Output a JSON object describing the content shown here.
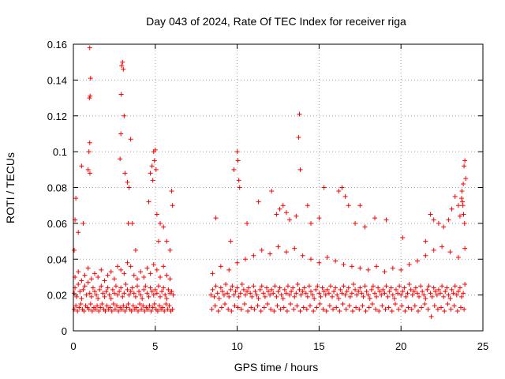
{
  "chart_data": {
    "type": "scatter",
    "title": "Day 043 of 2024, Rate Of TEC Index for receiver riga",
    "xlabel": "GPS time / hours",
    "ylabel": "ROTI / TECUs",
    "xlim": [
      0,
      25
    ],
    "ylim": [
      0,
      0.16
    ],
    "xticks": [
      0,
      5,
      10,
      15,
      20,
      25
    ],
    "xtick_labels": [
      "0",
      "5",
      "10",
      "15",
      "20",
      "25"
    ],
    "yticks": [
      0,
      0.02,
      0.04,
      0.06,
      0.08,
      0.1,
      0.12,
      0.14,
      0.16
    ],
    "ytick_labels": [
      "0",
      "0.02",
      "0.04",
      "0.06",
      "0.08",
      "0.1",
      "0.12",
      "0.14",
      "0.16"
    ],
    "grid": true,
    "marker": "+",
    "series_color": "#ff0000",
    "series": [
      {
        "x": [
          0.05,
          0.1,
          0.2,
          0.3,
          0.4,
          0.5,
          0.6,
          0.7,
          0.8,
          0.9,
          1.0,
          1.1,
          1.2,
          1.3,
          1.4,
          1.5,
          1.6,
          1.7,
          1.8,
          1.9,
          2.0,
          2.1,
          2.2,
          2.3,
          2.4,
          2.5,
          2.6,
          2.7,
          2.8,
          2.9,
          3.0,
          3.1,
          3.2,
          3.3,
          3.4,
          3.5,
          3.6,
          3.7,
          3.8,
          3.9,
          4.0,
          4.1,
          4.2,
          4.3,
          4.4,
          4.5,
          4.6,
          4.7,
          4.8,
          4.9,
          5.0,
          5.1,
          5.2,
          5.3,
          5.4,
          5.5,
          5.6,
          5.7,
          5.8,
          5.9,
          6.0,
          6.1,
          0.05,
          0.15,
          0.25,
          0.35,
          0.45,
          0.55,
          0.65,
          0.75,
          0.85,
          0.95,
          1.05,
          1.15,
          1.25,
          1.35,
          1.45,
          1.55,
          1.65,
          1.75,
          1.85,
          1.95,
          2.05,
          2.15,
          2.25,
          2.35,
          2.45,
          2.55,
          2.65,
          2.75,
          2.85,
          2.95,
          3.05,
          3.15,
          3.25,
          3.35,
          3.45,
          3.55,
          3.65,
          3.75,
          3.85,
          3.95,
          4.05,
          4.15,
          4.25,
          4.35,
          4.45,
          4.55,
          4.65,
          4.75,
          4.85,
          4.95,
          5.05,
          5.15,
          5.25,
          5.35,
          5.45,
          5.55,
          5.65,
          5.75,
          5.85,
          5.95,
          6.05,
          0.1,
          0.3,
          0.5,
          0.7,
          0.9,
          1.1,
          1.3,
          1.5,
          1.7,
          1.9,
          2.1,
          2.3,
          2.5,
          2.7,
          2.9,
          3.1,
          3.3,
          3.5,
          3.7,
          3.9,
          4.1,
          4.3,
          4.5,
          4.7,
          4.9,
          5.1,
          5.3,
          5.5,
          5.7,
          5.9,
          0.05,
          0.1,
          0.15,
          0.3,
          0.5,
          0.6,
          0.9,
          0.95,
          1.0,
          1.02,
          1.05,
          1.0,
          0.98,
          1.01,
          2.85,
          2.9,
          2.95,
          3.0,
          3.05,
          2.92,
          3.1,
          3.15,
          3.3,
          3.35,
          3.4,
          3.5,
          3.6,
          3.8,
          4.6,
          4.7,
          4.8,
          4.85,
          4.9,
          4.95,
          5.0,
          5.05,
          5.1,
          5.2,
          5.3,
          5.5,
          5.7,
          5.9,
          6.0,
          6.05,
          8.4,
          8.5,
          8.6,
          8.7,
          8.8,
          8.9,
          9.0,
          9.1,
          9.2,
          9.3,
          9.4,
          9.5,
          9.6,
          9.7,
          9.8,
          9.9,
          10.0,
          10.1,
          10.2,
          10.3,
          10.4,
          10.5,
          10.6,
          10.7,
          10.8,
          10.9,
          11.0,
          11.1,
          11.2,
          11.3,
          11.4,
          11.5,
          11.6,
          11.7,
          11.8,
          11.9,
          12.0,
          12.1,
          12.2,
          12.3,
          12.4,
          12.5,
          12.6,
          12.7,
          12.8,
          12.9,
          13.0,
          13.1,
          13.2,
          13.3,
          13.4,
          13.5,
          13.6,
          13.7,
          13.8,
          13.9,
          14.0,
          14.1,
          14.2,
          14.3,
          14.4,
          14.5,
          14.6,
          14.7,
          14.8,
          14.9,
          15.0,
          15.1,
          15.2,
          15.3,
          15.4,
          15.5,
          15.6,
          15.7,
          15.8,
          15.9,
          16.0,
          16.1,
          16.2,
          16.3,
          16.4,
          16.5,
          16.6,
          16.7,
          16.8,
          16.9,
          17.0,
          17.1,
          17.2,
          17.3,
          17.4,
          17.5,
          17.6,
          17.7,
          17.8,
          17.9,
          18.0,
          18.1,
          18.2,
          18.3,
          18.4,
          18.5,
          18.6,
          18.7,
          18.8,
          18.9,
          19.0,
          19.1,
          19.2,
          19.3,
          19.4,
          19.5,
          19.6,
          19.7,
          19.8,
          19.9,
          20.0,
          20.1,
          20.2,
          20.3,
          20.4,
          20.5,
          20.6,
          20.7,
          20.8,
          20.9,
          21.0,
          21.1,
          21.2,
          21.3,
          21.4,
          21.5,
          21.6,
          21.7,
          21.8,
          21.9,
          22.0,
          22.1,
          22.2,
          22.3,
          22.4,
          22.5,
          22.6,
          22.7,
          22.8,
          22.9,
          23.0,
          23.1,
          23.2,
          23.3,
          23.4,
          23.5,
          23.6,
          23.7,
          23.8,
          23.9,
          8.45,
          8.65,
          8.85,
          9.05,
          9.25,
          9.45,
          9.65,
          9.85,
          10.05,
          10.25,
          10.45,
          10.65,
          10.85,
          11.05,
          11.25,
          11.45,
          11.65,
          11.85,
          12.05,
          12.25,
          12.45,
          12.65,
          12.85,
          13.05,
          13.25,
          13.45,
          13.65,
          13.85,
          14.05,
          14.25,
          14.45,
          14.65,
          14.85,
          15.05,
          15.25,
          15.45,
          15.65,
          15.85,
          16.05,
          16.25,
          16.45,
          16.65,
          16.85,
          17.05,
          17.25,
          17.45,
          17.65,
          17.85,
          18.05,
          18.25,
          18.45,
          18.65,
          18.85,
          19.05,
          19.25,
          19.45,
          19.65,
          19.85,
          20.05,
          20.25,
          20.45,
          20.65,
          20.85,
          21.05,
          21.25,
          21.45,
          21.65,
          21.85,
          22.05,
          22.25,
          22.45,
          22.65,
          22.85,
          23.05,
          23.25,
          23.45,
          23.65,
          23.85,
          8.5,
          9.0,
          9.5,
          10.0,
          10.5,
          11.0,
          11.5,
          12.0,
          12.5,
          13.0,
          13.5,
          14.0,
          14.5,
          15.0,
          15.5,
          16.0,
          16.5,
          17.0,
          17.5,
          18.0,
          18.5,
          19.0,
          19.5,
          20.0,
          20.5,
          21.0,
          21.5,
          22.0,
          22.5,
          23.0,
          23.5,
          23.9,
          8.7,
          9.6,
          9.8,
          10.0,
          10.05,
          10.1,
          10.15,
          10.6,
          11.3,
          12.1,
          12.4,
          12.6,
          12.8,
          13.0,
          13.2,
          13.6,
          13.75,
          13.8,
          13.85,
          14.3,
          14.5,
          15.0,
          15.3,
          16.2,
          16.4,
          16.6,
          16.8,
          17.2,
          17.5,
          17.8,
          18.4,
          19.1,
          20.1,
          21.5,
          21.8,
          22.0,
          22.3,
          22.6,
          22.9,
          23.1,
          23.3,
          23.5,
          23.6,
          23.7,
          23.75,
          23.8,
          23.85,
          23.9,
          23.95,
          23.72,
          23.78,
          23.82,
          23.88
        ],
        "y": [
          0.021,
          0.024,
          0.019,
          0.026,
          0.022,
          0.018,
          0.023,
          0.025,
          0.02,
          0.027,
          0.021,
          0.019,
          0.024,
          0.022,
          0.02,
          0.018,
          0.023,
          0.025,
          0.021,
          0.019,
          0.022,
          0.024,
          0.02,
          0.018,
          0.023,
          0.021,
          0.025,
          0.02,
          0.022,
          0.024,
          0.019,
          0.021,
          0.026,
          0.023,
          0.02,
          0.022,
          0.024,
          0.021,
          0.019,
          0.025,
          0.022,
          0.02,
          0.018,
          0.023,
          0.025,
          0.021,
          0.019,
          0.024,
          0.022,
          0.02,
          0.023,
          0.021,
          0.025,
          0.019,
          0.022,
          0.024,
          0.02,
          0.018,
          0.023,
          0.021,
          0.022,
          0.02,
          0.012,
          0.014,
          0.011,
          0.013,
          0.015,
          0.012,
          0.011,
          0.014,
          0.013,
          0.012,
          0.015,
          0.011,
          0.013,
          0.012,
          0.014,
          0.011,
          0.013,
          0.015,
          0.012,
          0.011,
          0.014,
          0.012,
          0.013,
          0.011,
          0.015,
          0.012,
          0.014,
          0.011,
          0.013,
          0.012,
          0.014,
          0.011,
          0.013,
          0.015,
          0.012,
          0.011,
          0.014,
          0.012,
          0.013,
          0.011,
          0.015,
          0.012,
          0.014,
          0.011,
          0.013,
          0.012,
          0.014,
          0.011,
          0.013,
          0.015,
          0.012,
          0.011,
          0.014,
          0.012,
          0.013,
          0.011,
          0.015,
          0.012,
          0.014,
          0.011,
          0.012,
          0.03,
          0.033,
          0.028,
          0.031,
          0.035,
          0.029,
          0.032,
          0.03,
          0.034,
          0.028,
          0.031,
          0.033,
          0.029,
          0.036,
          0.034,
          0.032,
          0.038,
          0.036,
          0.031,
          0.029,
          0.033,
          0.03,
          0.035,
          0.032,
          0.037,
          0.034,
          0.03,
          0.036,
          0.031,
          0.029,
          0.045,
          0.062,
          0.074,
          0.055,
          0.092,
          0.06,
          0.09,
          0.1,
          0.105,
          0.131,
          0.141,
          0.158,
          0.13,
          0.088,
          0.096,
          0.11,
          0.148,
          0.15,
          0.146,
          0.132,
          0.12,
          0.088,
          0.083,
          0.06,
          0.08,
          0.107,
          0.06,
          0.045,
          0.072,
          0.088,
          0.092,
          0.084,
          0.1,
          0.095,
          0.101,
          0.09,
          0.065,
          0.05,
          0.06,
          0.058,
          0.05,
          0.045,
          0.078,
          0.07,
          0.02,
          0.023,
          0.019,
          0.025,
          0.021,
          0.018,
          0.024,
          0.022,
          0.02,
          0.026,
          0.021,
          0.019,
          0.023,
          0.025,
          0.02,
          0.022,
          0.024,
          0.019,
          0.021,
          0.026,
          0.023,
          0.02,
          0.022,
          0.024,
          0.021,
          0.019,
          0.025,
          0.022,
          0.02,
          0.018,
          0.023,
          0.025,
          0.021,
          0.019,
          0.024,
          0.022,
          0.02,
          0.023,
          0.021,
          0.025,
          0.019,
          0.022,
          0.024,
          0.02,
          0.018,
          0.023,
          0.021,
          0.025,
          0.02,
          0.022,
          0.024,
          0.019,
          0.021,
          0.026,
          0.023,
          0.02,
          0.022,
          0.024,
          0.021,
          0.019,
          0.025,
          0.022,
          0.02,
          0.018,
          0.023,
          0.025,
          0.021,
          0.019,
          0.024,
          0.022,
          0.02,
          0.023,
          0.021,
          0.025,
          0.019,
          0.022,
          0.024,
          0.02,
          0.018,
          0.023,
          0.021,
          0.025,
          0.02,
          0.022,
          0.024,
          0.019,
          0.021,
          0.026,
          0.023,
          0.02,
          0.022,
          0.024,
          0.021,
          0.019,
          0.025,
          0.022,
          0.02,
          0.018,
          0.023,
          0.025,
          0.021,
          0.019,
          0.024,
          0.022,
          0.02,
          0.023,
          0.021,
          0.025,
          0.019,
          0.022,
          0.024,
          0.02,
          0.018,
          0.023,
          0.021,
          0.025,
          0.02,
          0.022,
          0.024,
          0.019,
          0.021,
          0.026,
          0.023,
          0.02,
          0.022,
          0.024,
          0.021,
          0.019,
          0.025,
          0.022,
          0.02,
          0.018,
          0.023,
          0.025,
          0.021,
          0.019,
          0.024,
          0.022,
          0.02,
          0.023,
          0.021,
          0.025,
          0.019,
          0.022,
          0.024,
          0.02,
          0.018,
          0.023,
          0.021,
          0.025,
          0.02,
          0.022,
          0.024,
          0.019,
          0.021,
          0.026,
          0.012,
          0.014,
          0.011,
          0.013,
          0.015,
          0.012,
          0.011,
          0.014,
          0.013,
          0.012,
          0.015,
          0.011,
          0.013,
          0.012,
          0.014,
          0.011,
          0.013,
          0.015,
          0.012,
          0.011,
          0.014,
          0.012,
          0.013,
          0.011,
          0.015,
          0.012,
          0.014,
          0.011,
          0.013,
          0.012,
          0.014,
          0.011,
          0.013,
          0.015,
          0.012,
          0.011,
          0.014,
          0.012,
          0.013,
          0.011,
          0.015,
          0.012,
          0.014,
          0.011,
          0.013,
          0.012,
          0.014,
          0.011,
          0.013,
          0.015,
          0.012,
          0.011,
          0.014,
          0.012,
          0.013,
          0.011,
          0.015,
          0.012,
          0.014,
          0.011,
          0.013,
          0.012,
          0.014,
          0.011,
          0.013,
          0.015,
          0.012,
          0.008,
          0.014,
          0.012,
          0.013,
          0.011,
          0.015,
          0.012,
          0.014,
          0.011,
          0.013,
          0.012,
          0.032,
          0.036,
          0.034,
          0.038,
          0.04,
          0.042,
          0.045,
          0.043,
          0.047,
          0.044,
          0.046,
          0.042,
          0.04,
          0.038,
          0.041,
          0.039,
          0.037,
          0.036,
          0.035,
          0.034,
          0.036,
          0.033,
          0.035,
          0.034,
          0.037,
          0.039,
          0.042,
          0.045,
          0.047,
          0.044,
          0.041,
          0.046,
          0.063,
          0.05,
          0.09,
          0.1,
          0.095,
          0.084,
          0.08,
          0.06,
          0.072,
          0.078,
          0.065,
          0.068,
          0.07,
          0.066,
          0.062,
          0.064,
          0.108,
          0.121,
          0.09,
          0.07,
          0.06,
          0.063,
          0.08,
          0.078,
          0.08,
          0.075,
          0.07,
          0.06,
          0.07,
          0.058,
          0.063,
          0.062,
          0.052,
          0.05,
          0.065,
          0.062,
          0.06,
          0.058,
          0.062,
          0.068,
          0.075,
          0.07,
          0.064,
          0.074,
          0.072,
          0.082,
          0.092,
          0.095,
          0.085,
          0.078,
          0.07,
          0.065,
          0.06
        ]
      }
    ]
  }
}
